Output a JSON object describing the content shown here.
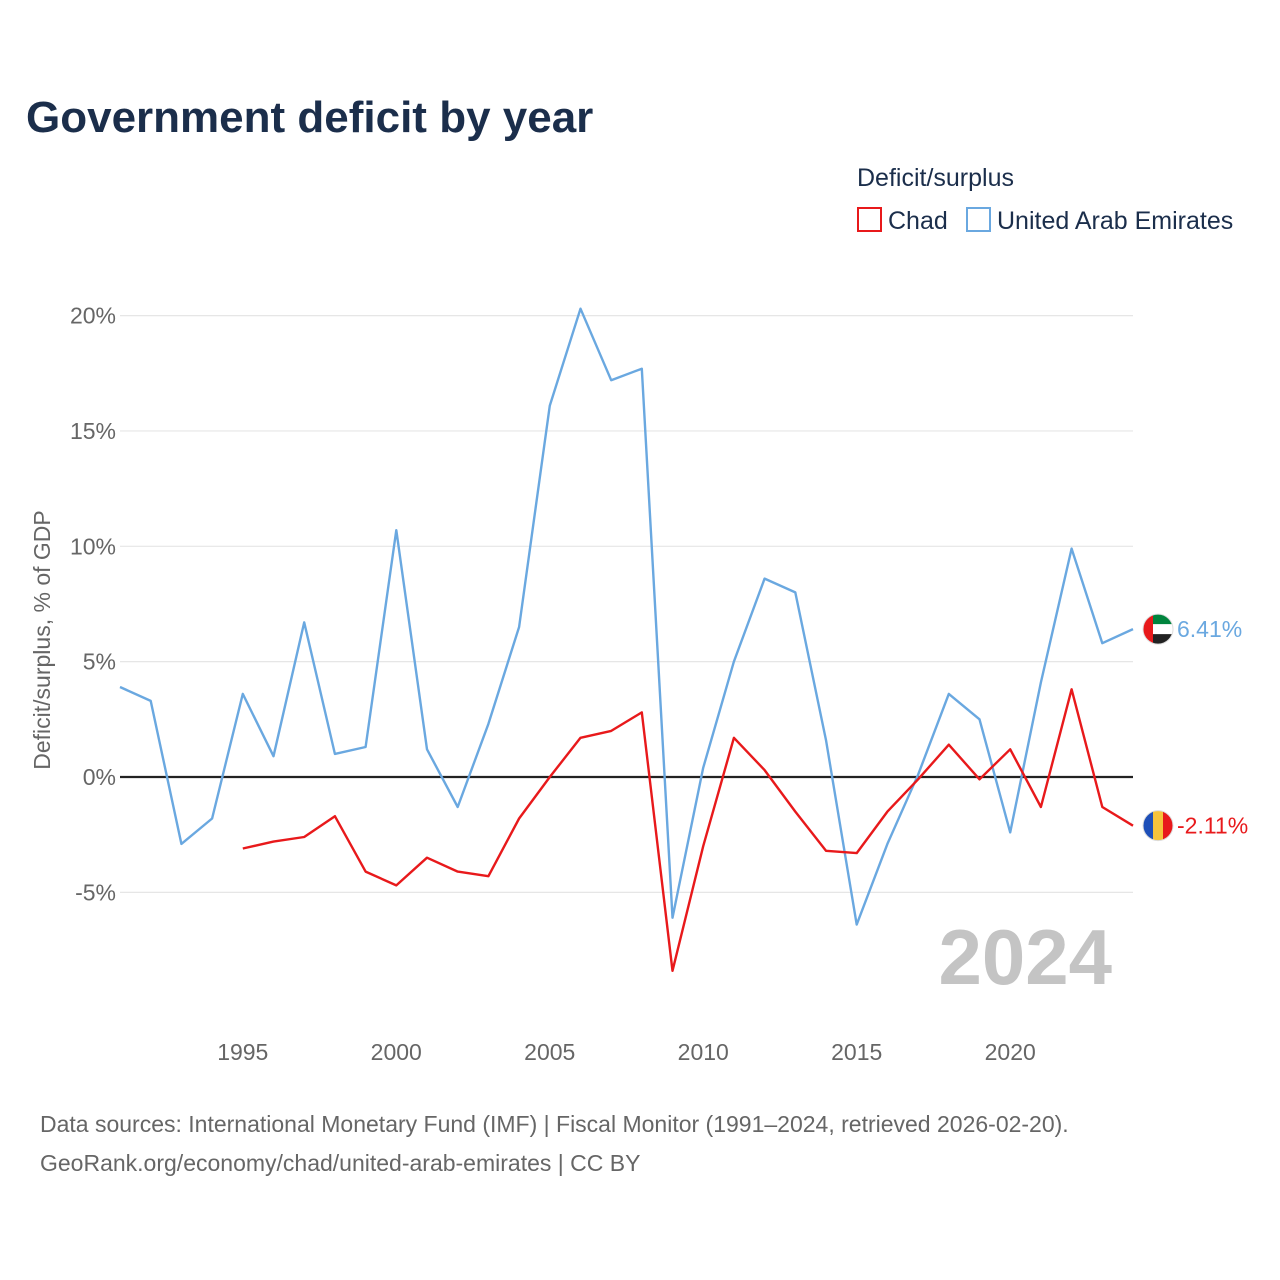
{
  "chart_data": {
    "type": "line",
    "title": "Government deficit by year",
    "ylabel": "Deficit/surplus, % of GDP",
    "xlabel": "",
    "xlim": [
      1991,
      2024
    ],
    "ylim": [
      -10,
      21
    ],
    "yticks": [
      20,
      15,
      10,
      5,
      0,
      -5
    ],
    "ytick_labels": [
      "20%",
      "15%",
      "10%",
      "5%",
      "0%",
      "-5%"
    ],
    "xticks": [
      1995,
      2000,
      2005,
      2010,
      2015,
      2020
    ],
    "xtick_labels": [
      "1995",
      "2000",
      "2005",
      "2010",
      "2015",
      "2020"
    ],
    "legend": {
      "title": "Deficit/surplus",
      "position": "top-right",
      "entries": [
        "Chad",
        "United Arab Emirates"
      ]
    },
    "highlight_year": "2024",
    "series": [
      {
        "name": "Chad",
        "color": "#e8191b",
        "end_label": "-2.11%",
        "flag_colors": [
          "#1d4fb8",
          "#f5c33b",
          "#e8191b"
        ],
        "x": [
          1995,
          1996,
          1997,
          1998,
          1999,
          2000,
          2001,
          2002,
          2003,
          2004,
          2005,
          2006,
          2007,
          2008,
          2009,
          2010,
          2011,
          2012,
          2013,
          2014,
          2015,
          2016,
          2017,
          2018,
          2019,
          2020,
          2021,
          2022,
          2023,
          2024
        ],
        "values": [
          -3.1,
          -2.8,
          -2.6,
          -1.7,
          -4.1,
          -4.7,
          -3.5,
          -4.1,
          -4.3,
          -1.8,
          0.0,
          1.7,
          2.0,
          2.8,
          -8.4,
          -3.0,
          1.7,
          0.3,
          -1.5,
          -3.2,
          -3.3,
          -1.5,
          -0.1,
          1.4,
          -0.1,
          1.2,
          -1.3,
          3.8,
          -1.3,
          -2.11
        ]
      },
      {
        "name": "United Arab Emirates",
        "color": "#6aa8e0",
        "end_label": "6.41%",
        "flag_colors": [
          "#e8191b",
          "#00843d",
          "#ffffff",
          "#222222"
        ],
        "x": [
          1991,
          1992,
          1993,
          1994,
          1995,
          1996,
          1997,
          1998,
          1999,
          2000,
          2001,
          2002,
          2003,
          2004,
          2005,
          2006,
          2007,
          2008,
          2009,
          2010,
          2011,
          2012,
          2013,
          2014,
          2015,
          2016,
          2017,
          2018,
          2019,
          2020,
          2021,
          2022,
          2023,
          2024
        ],
        "values": [
          3.9,
          3.3,
          -2.9,
          -1.8,
          3.6,
          0.9,
          6.7,
          1.0,
          1.3,
          10.7,
          1.2,
          -1.3,
          2.3,
          6.5,
          16.1,
          20.3,
          17.2,
          17.7,
          -6.1,
          0.4,
          5.0,
          8.6,
          8.0,
          1.6,
          -6.4,
          -2.9,
          0.1,
          3.6,
          2.5,
          -2.4,
          4.1,
          9.9,
          5.8,
          6.41
        ]
      }
    ]
  },
  "footer": {
    "source_line1": "Data sources: International Monetary Fund (IMF) | Fiscal Monitor (1991–2024, retrieved 2026-02-20).",
    "source_line2": "GeoRank.org/economy/chad/united-arab-emirates | CC BY"
  }
}
